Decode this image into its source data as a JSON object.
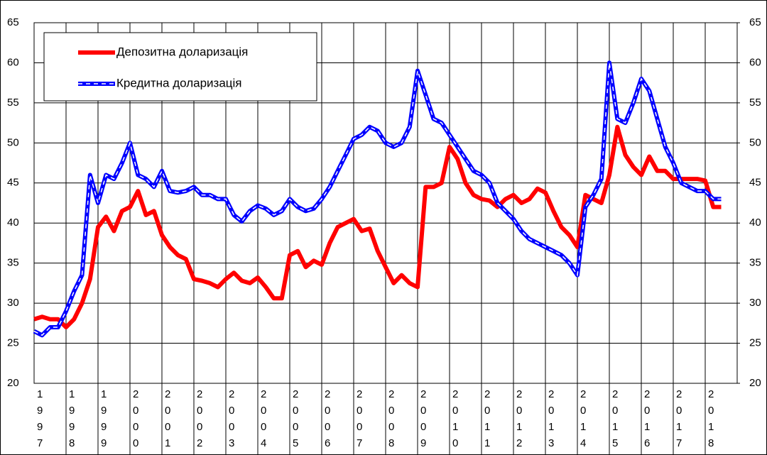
{
  "chart_data": {
    "type": "line",
    "x": [
      1997,
      1997.25,
      1997.5,
      1997.75,
      1998,
      1998.25,
      1998.5,
      1998.75,
      1999,
      1999.25,
      1999.5,
      1999.75,
      2000,
      2000.25,
      2000.5,
      2000.75,
      2001,
      2001.25,
      2001.5,
      2001.75,
      2002,
      2002.25,
      2002.5,
      2002.75,
      2003,
      2003.25,
      2003.5,
      2003.75,
      2004,
      2004.25,
      2004.5,
      2004.75,
      2005,
      2005.25,
      2005.5,
      2005.75,
      2006,
      2006.25,
      2006.5,
      2006.75,
      2007,
      2007.25,
      2007.5,
      2007.75,
      2008,
      2008.25,
      2008.5,
      2008.75,
      2009,
      2009.25,
      2009.5,
      2009.75,
      2010,
      2010.25,
      2010.5,
      2010.75,
      2011,
      2011.25,
      2011.5,
      2011.75,
      2012,
      2012.25,
      2012.5,
      2012.75,
      2013,
      2013.25,
      2013.5,
      2013.75,
      2014,
      2014.25,
      2014.5,
      2014.75,
      2015,
      2015.25,
      2015.5,
      2015.75,
      2016,
      2016.25,
      2016.5,
      2016.75,
      2017,
      2017.25,
      2017.5,
      2017.75,
      2018,
      2018.25,
      2018.5
    ],
    "series": [
      {
        "name": "Депозитна доларизація",
        "color": "#ff0000",
        "values": [
          28,
          28.3,
          28,
          28,
          27,
          28,
          30,
          33,
          39.5,
          40.8,
          39,
          41.5,
          42,
          44,
          41,
          41.5,
          38.5,
          37,
          36,
          35.5,
          33,
          32.8,
          32.5,
          32,
          33,
          33.8,
          32.8,
          32.5,
          33.2,
          32,
          30.6,
          30.6,
          36,
          36.5,
          34.5,
          35.3,
          34.8,
          37.5,
          39.5,
          40,
          40.5,
          39,
          39.3,
          36.5,
          34.5,
          32.5,
          33.5,
          32.5,
          32,
          44.5,
          44.5,
          45,
          49.5,
          48,
          45,
          43.5,
          43,
          42.8,
          42,
          43,
          43.5,
          42.5,
          43,
          44.3,
          43.8,
          41.5,
          39.5,
          38.5,
          37,
          43.5,
          43,
          42.5,
          46,
          52,
          48.5,
          47,
          46,
          48.3,
          46.5,
          46.5,
          45.5,
          45.5,
          45.5,
          45.5,
          45.3,
          42,
          42
        ]
      },
      {
        "name": "Кредитна доларизація",
        "color": "#0000ff",
        "values": [
          26.5,
          26,
          27,
          27,
          29,
          31.5,
          33.5,
          46,
          42.5,
          46,
          45.5,
          47.5,
          50,
          46,
          45.5,
          44.5,
          46.5,
          44,
          43.8,
          44,
          44.5,
          43.5,
          43.5,
          43,
          43,
          41,
          40.2,
          41.5,
          42.2,
          41.8,
          41,
          41.5,
          43,
          42,
          41.5,
          41.8,
          43,
          44.5,
          46.5,
          48.5,
          50.5,
          51,
          52,
          51.5,
          50,
          49.5,
          50,
          52,
          59,
          56,
          53,
          52.5,
          51,
          49.5,
          48,
          46.5,
          46,
          45,
          42.5,
          41.5,
          40.5,
          39,
          38,
          37.5,
          37,
          36.5,
          36,
          35,
          33.5,
          42,
          43.5,
          45.5,
          60,
          53,
          52.5,
          55,
          58,
          56.5,
          53,
          49.5,
          47.5,
          45,
          44.5,
          44,
          44,
          43,
          43
        ]
      }
    ],
    "xlim": [
      1997,
      2019
    ],
    "xticks": [
      1997,
      1998,
      1999,
      2000,
      2001,
      2002,
      2003,
      2004,
      2005,
      2006,
      2007,
      2008,
      2009,
      2010,
      2011,
      2012,
      2013,
      2014,
      2015,
      2016,
      2017,
      2018
    ],
    "ylim": [
      20,
      65
    ],
    "yticks": [
      20,
      25,
      30,
      35,
      40,
      45,
      50,
      55,
      60,
      65
    ],
    "y2lim": [
      20,
      65
    ],
    "y2ticks": [
      20,
      25,
      30,
      35,
      40,
      45,
      50,
      55,
      60,
      65
    ],
    "grid": true,
    "legend": "upper left"
  }
}
